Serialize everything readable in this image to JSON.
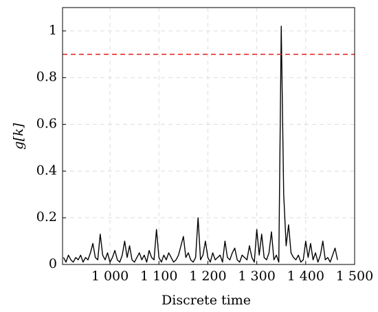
{
  "chart_data": {
    "type": "line",
    "xlabel": "Discrete time",
    "ylabel": "g[k]",
    "x": [
      905,
      910,
      915,
      920,
      925,
      930,
      935,
      940,
      945,
      950,
      955,
      960,
      965,
      970,
      975,
      980,
      985,
      990,
      995,
      1000,
      1005,
      1010,
      1015,
      1020,
      1025,
      1030,
      1035,
      1040,
      1045,
      1050,
      1055,
      1060,
      1065,
      1070,
      1075,
      1080,
      1085,
      1090,
      1095,
      1100,
      1105,
      1110,
      1115,
      1120,
      1125,
      1130,
      1135,
      1140,
      1145,
      1150,
      1155,
      1160,
      1165,
      1170,
      1175,
      1180,
      1185,
      1190,
      1195,
      1200,
      1205,
      1210,
      1215,
      1220,
      1225,
      1230,
      1235,
      1240,
      1245,
      1250,
      1255,
      1260,
      1265,
      1270,
      1275,
      1280,
      1285,
      1290,
      1295,
      1300,
      1305,
      1310,
      1315,
      1320,
      1325,
      1330,
      1335,
      1340,
      1345,
      1350,
      1355,
      1360,
      1365,
      1370,
      1375,
      1380,
      1385,
      1390,
      1395,
      1400,
      1405,
      1410,
      1415,
      1420,
      1425,
      1430,
      1435,
      1440,
      1445,
      1450,
      1455,
      1460,
      1465
    ],
    "series": [
      {
        "color": "#000000",
        "values": [
          0.03,
          0.01,
          0.04,
          0.02,
          0.01,
          0.03,
          0.02,
          0.04,
          0.01,
          0.03,
          0.02,
          0.05,
          0.09,
          0.03,
          0.02,
          0.13,
          0.04,
          0.02,
          0.05,
          0.01,
          0.03,
          0.06,
          0.02,
          0.01,
          0.04,
          0.1,
          0.03,
          0.08,
          0.02,
          0.01,
          0.03,
          0.05,
          0.02,
          0.04,
          0.01,
          0.06,
          0.03,
          0.02,
          0.15,
          0.03,
          0.01,
          0.04,
          0.02,
          0.05,
          0.03,
          0.01,
          0.02,
          0.04,
          0.08,
          0.12,
          0.03,
          0.05,
          0.02,
          0.01,
          0.03,
          0.2,
          0.02,
          0.04,
          0.1,
          0.03,
          0.01,
          0.05,
          0.02,
          0.03,
          0.04,
          0.01,
          0.1,
          0.03,
          0.02,
          0.05,
          0.07,
          0.02,
          0.01,
          0.04,
          0.03,
          0.02,
          0.08,
          0.03,
          0.01,
          0.15,
          0.04,
          0.13,
          0.03,
          0.02,
          0.05,
          0.14,
          0.02,
          0.04,
          0.01,
          1.02,
          0.3,
          0.08,
          0.17,
          0.05,
          0.03,
          0.02,
          0.04,
          0.01,
          0.02,
          0.1,
          0.03,
          0.09,
          0.02,
          0.05,
          0.01,
          0.04,
          0.1,
          0.02,
          0.03,
          0.01,
          0.04,
          0.07,
          0.02
        ]
      }
    ],
    "threshold": {
      "value": 0.9,
      "color": "#e41a1c"
    },
    "xlim": [
      903,
      1500
    ],
    "xticks": [
      {
        "value": 1000,
        "label": "1 000"
      },
      {
        "value": 1100,
        "label": "1 100"
      },
      {
        "value": 1200,
        "label": "1 200"
      },
      {
        "value": 1300,
        "label": "1 300"
      },
      {
        "value": 1400,
        "label": "1 400"
      },
      {
        "value": 1500,
        "label": "1 500"
      }
    ],
    "ylim": [
      0,
      1.1
    ],
    "yticks": [
      0,
      0.2,
      0.4,
      0.6,
      0.8,
      1
    ],
    "grid": true
  }
}
